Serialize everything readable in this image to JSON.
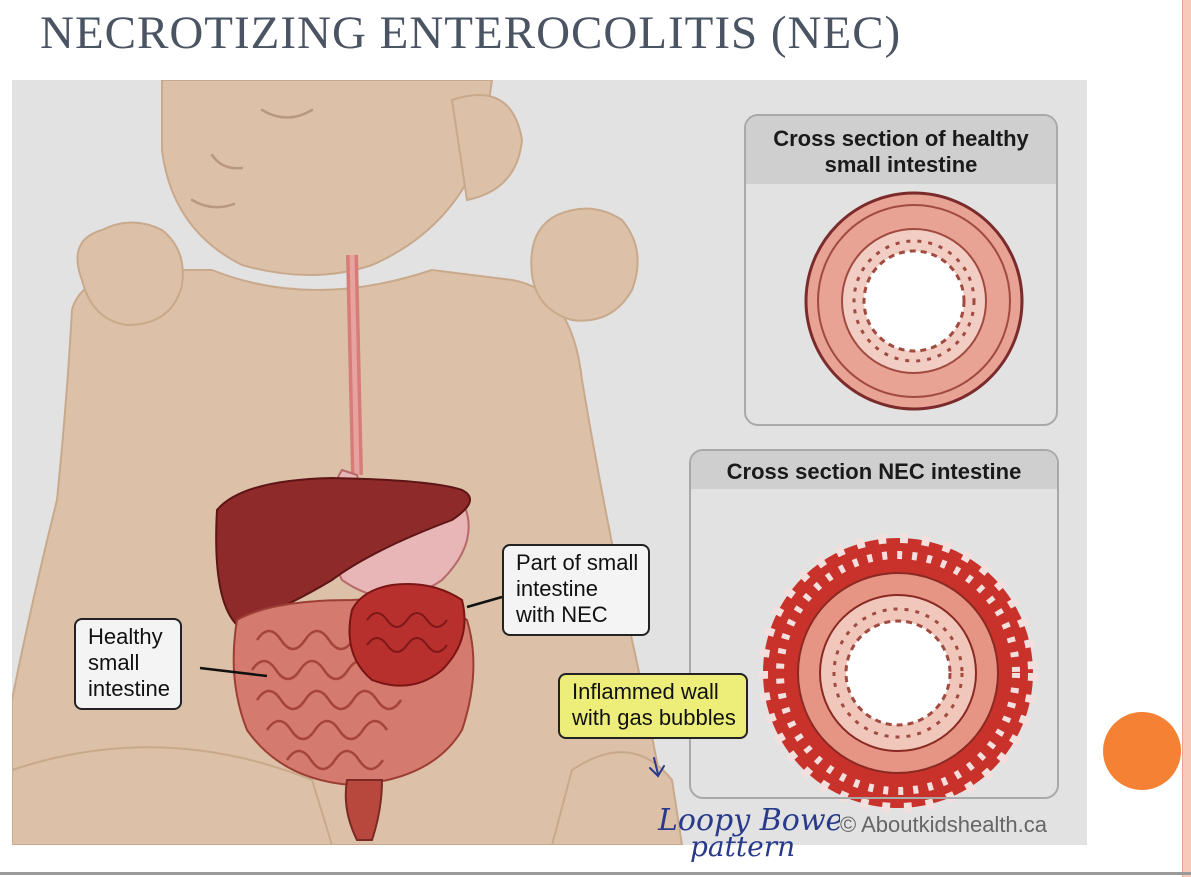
{
  "slide": {
    "title": "NECROTIZING ENTEROCOLITIS (NEC)"
  },
  "figure": {
    "healthy_panel_title": "Cross section of healthy small intestine",
    "nec_panel_title": "Cross section NEC intestine",
    "callouts": {
      "healthy": [
        "Healthy",
        "small",
        "intestine"
      ],
      "nec_part": [
        "Part of small",
        "intestine",
        "with NEC"
      ],
      "inflamed": [
        "Inflammed wall",
        "with gas bubbles"
      ]
    },
    "credit": "© Aboutkidshealth.ca"
  },
  "handwritten_note": [
    "Loopy Bowel",
    "pattern"
  ],
  "colors": {
    "accent_orange": "#f58234",
    "highlight": "#eded7a",
    "title_gray": "#4a5463"
  }
}
